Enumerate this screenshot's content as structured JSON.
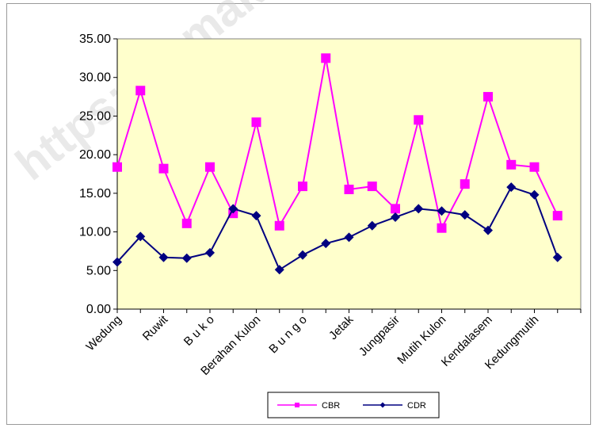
{
  "watermark": "https://demak",
  "chart_data": {
    "type": "line",
    "title": "",
    "xlabel": "",
    "ylabel": "",
    "ylim": [
      0,
      35
    ],
    "yticks": [
      "0.00",
      "5.00",
      "10.00",
      "15.00",
      "20.00",
      "25.00",
      "30.00",
      "35.00"
    ],
    "categories": [
      "Wedung",
      "",
      "Ruwit",
      "",
      "B u k o",
      "",
      "Berahan Kulon",
      "",
      "B u n g o",
      "",
      "Jetak",
      "",
      "Jungpasir",
      "",
      "Mutih Kulon",
      "",
      "Kendalasem",
      "",
      "Kedungmutih",
      ""
    ],
    "series": [
      {
        "name": "CBR",
        "color": "#ff00ff",
        "marker": "square",
        "values": [
          18.4,
          28.3,
          18.2,
          11.1,
          18.4,
          12.4,
          24.2,
          10.8,
          15.9,
          32.5,
          15.5,
          15.9,
          13.0,
          24.5,
          10.5,
          16.2,
          27.5,
          18.7,
          18.4,
          12.1
        ]
      },
      {
        "name": "CDR",
        "color": "#000080",
        "marker": "diamond",
        "values": [
          6.1,
          9.4,
          6.7,
          6.6,
          7.3,
          13.0,
          12.1,
          5.1,
          7.0,
          8.5,
          9.3,
          10.8,
          11.9,
          13.0,
          12.7,
          12.2,
          10.2,
          15.8,
          14.8,
          6.7
        ]
      }
    ],
    "grid": false,
    "plot_background": "#ffffcc",
    "legend": "bottom"
  }
}
